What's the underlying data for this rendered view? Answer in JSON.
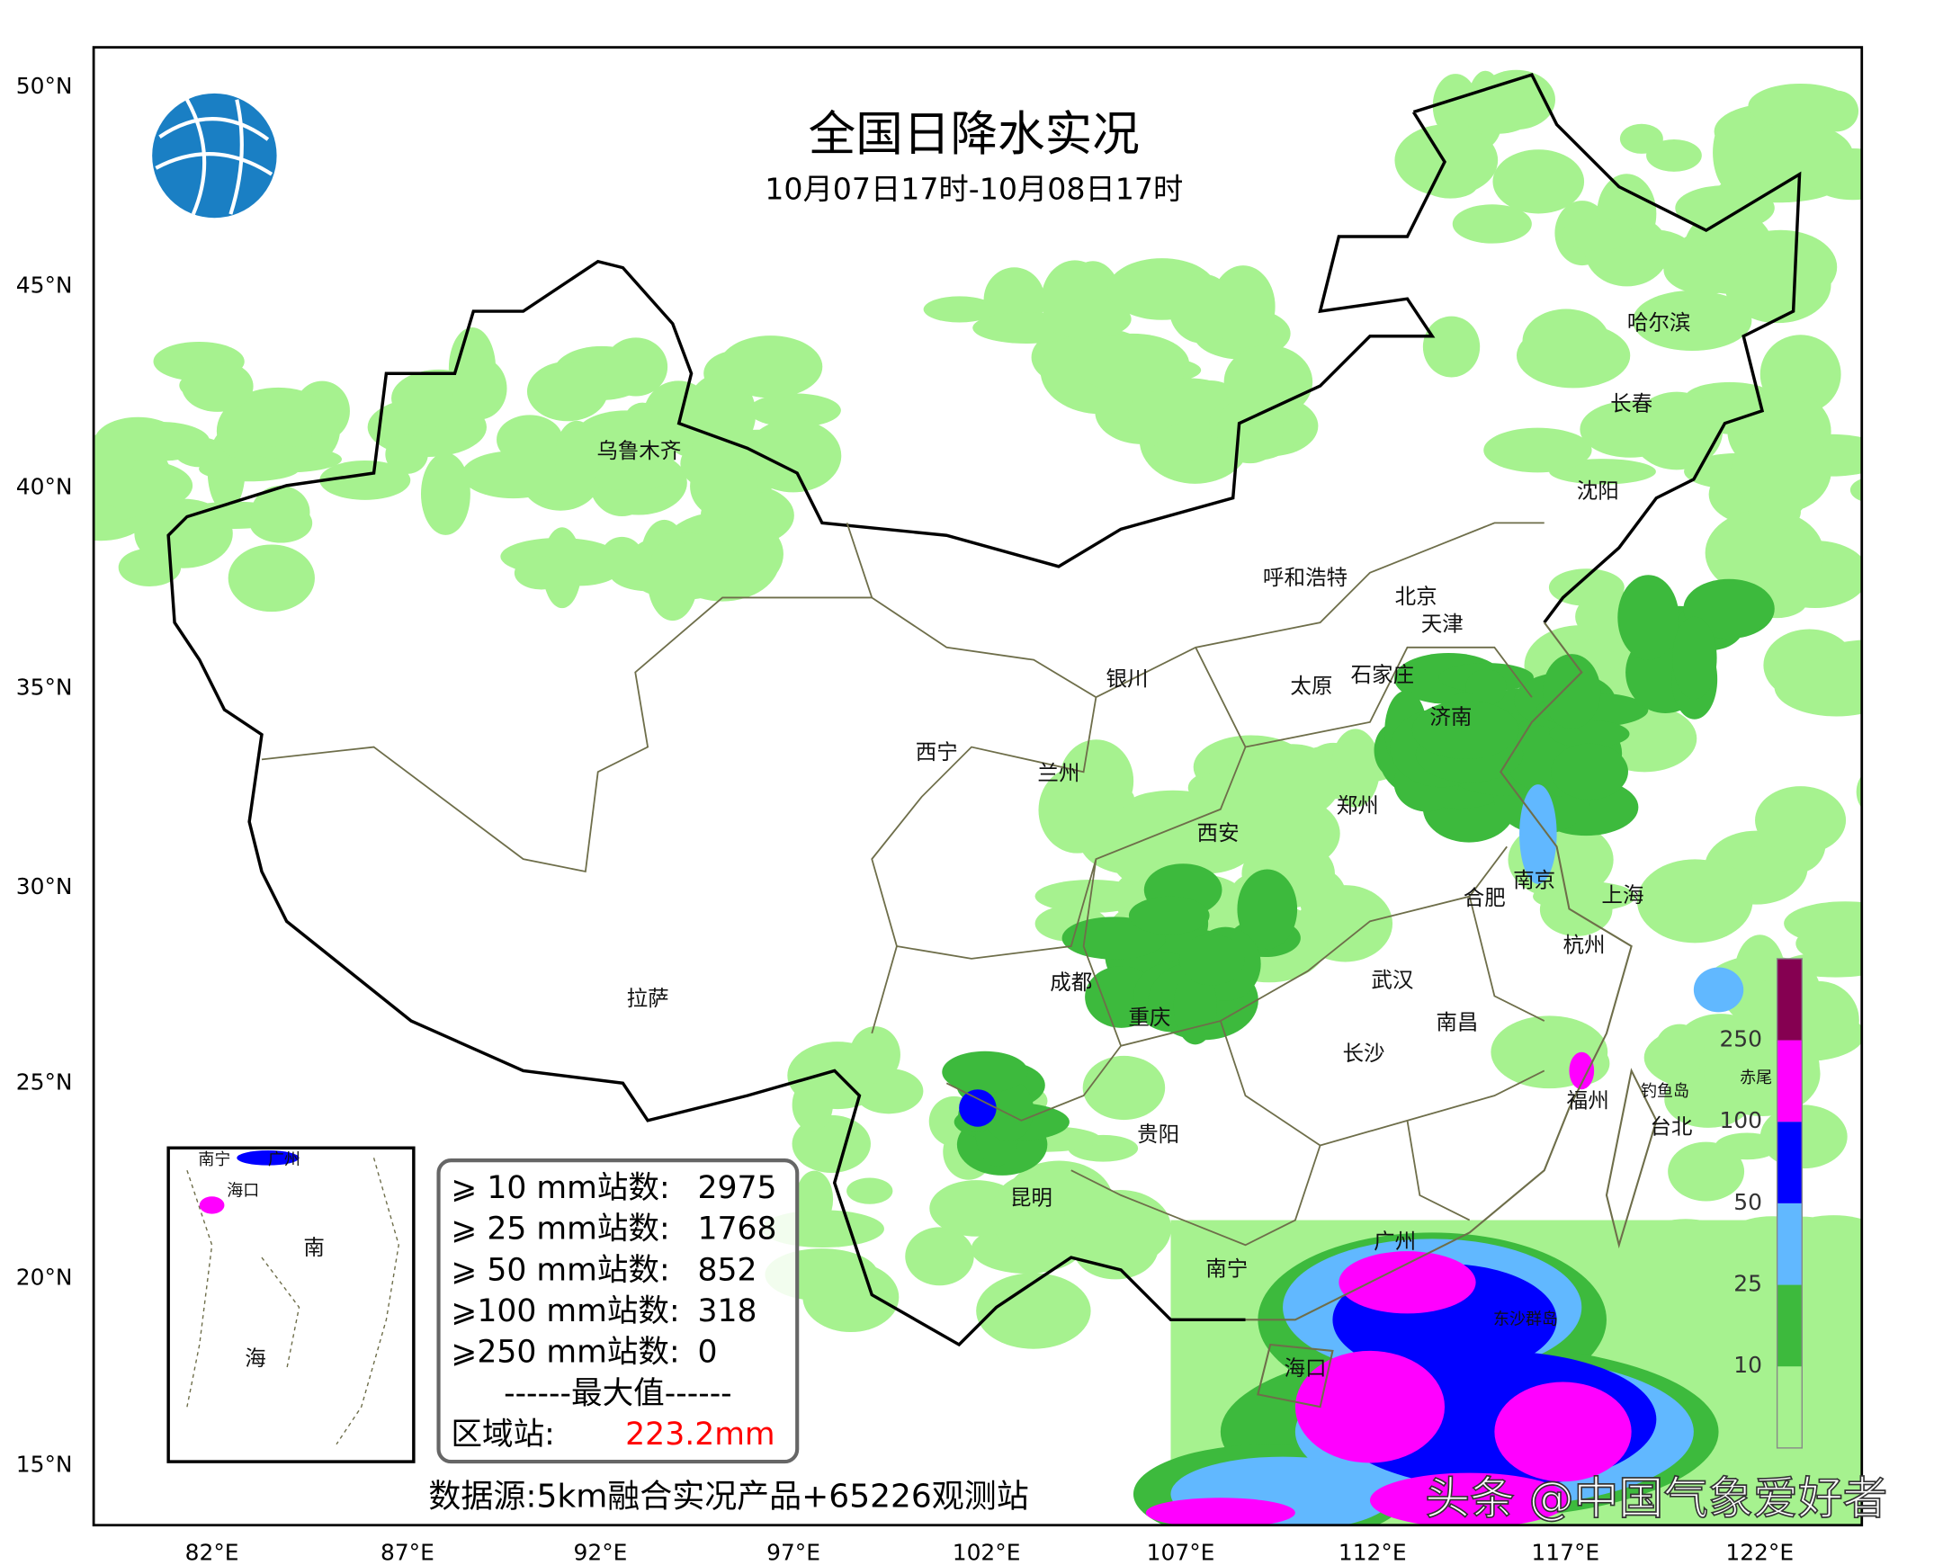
{
  "header": {
    "title": "全国日降水实况",
    "subtitle": "10月07日17时-10月08日17时"
  },
  "axes": {
    "lat_labels": [
      "50°N",
      "45°N",
      "40°N",
      "35°N",
      "30°N",
      "25°N",
      "20°N",
      "15°N"
    ],
    "lon_labels": [
      "82°E",
      "87°E",
      "92°E",
      "97°E",
      "102°E",
      "107°E",
      "112°E",
      "117°E",
      "122°E"
    ]
  },
  "cities": [
    "乌鲁木齐",
    "哈尔滨",
    "长春",
    "沈阳",
    "呼和浩特",
    "北京",
    "天津",
    "石家庄",
    "太原",
    "银川",
    "济南",
    "西宁",
    "兰州",
    "郑州",
    "西安",
    "南京",
    "合肥",
    "上海",
    "杭州",
    "拉萨",
    "成都",
    "重庆",
    "武汉",
    "南昌",
    "长沙",
    "福州",
    "台北",
    "贵阳",
    "昆明",
    "南宁",
    "广州",
    "海口"
  ],
  "small_labels": [
    "钓鱼岛",
    "东沙群岛",
    "赤尾"
  ],
  "inset": {
    "labels": [
      "南宁",
      "广州",
      "海口",
      "南",
      "海"
    ]
  },
  "stats": {
    "rows": [
      {
        "label": "⩾ 10 mm站数:",
        "value": 2975
      },
      {
        "label": "⩾ 25 mm站数:",
        "value": 1768
      },
      {
        "label": "⩾ 50 mm站数:",
        "value": 852
      },
      {
        "label": "⩾100 mm站数:",
        "value": 318
      },
      {
        "label": "⩾250 mm站数:",
        "value": 0
      }
    ],
    "max_header": "------最大值------",
    "max_label": "区域站:",
    "max_value": "223.2mm"
  },
  "legend": {
    "levels": [
      10,
      25,
      50,
      100,
      250
    ],
    "colors": [
      "#a6f28f",
      "#3dba3d",
      "#61b8ff",
      "#0000ff",
      "#ff00ff",
      "#850051"
    ]
  },
  "source": "数据源:5km融合实况产品+65226观测站",
  "watermark": "头条 @中国气象爱好者"
}
